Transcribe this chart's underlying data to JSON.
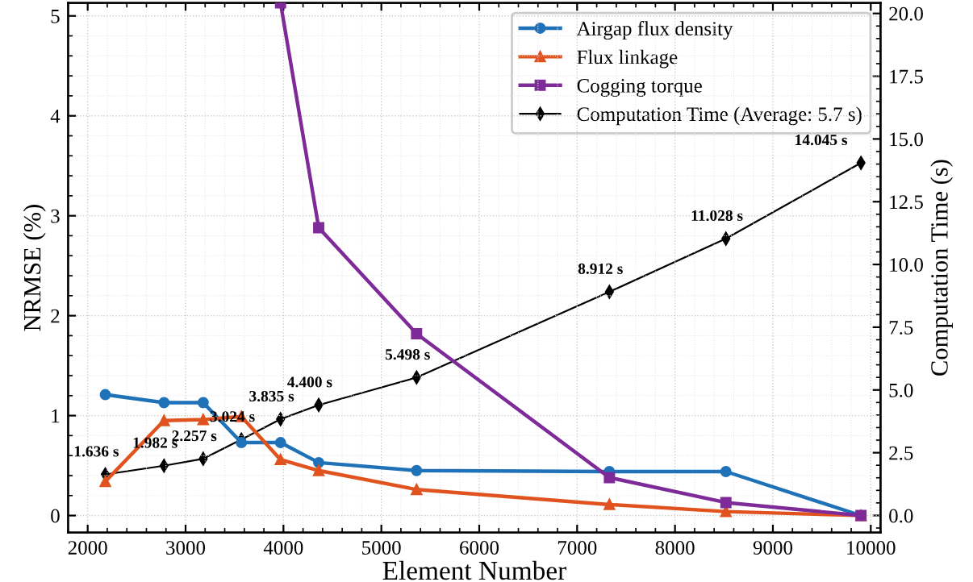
{
  "chart_data": {
    "type": "line",
    "xlabel": "Element Number",
    "ylabel": "NRMSE (%)",
    "y2label": "Computation Time (s)",
    "x": [
      2180,
      2780,
      3180,
      3570,
      3970,
      4360,
      5360,
      7330,
      8520,
      9900
    ],
    "series": [
      {
        "name": "Airgap flux density",
        "color": "#1f72b8",
        "marker": "circle",
        "values": [
          1.21,
          1.13,
          1.13,
          0.73,
          0.73,
          0.53,
          0.45,
          0.44,
          0.44,
          0
        ]
      },
      {
        "name": "Flux linkage",
        "color": "#e0531f",
        "marker": "triangle",
        "values": [
          0.34,
          0.95,
          0.96,
          0.99,
          0.56,
          0.45,
          0.26,
          0.11,
          0.04,
          0
        ]
      },
      {
        "name": "Cogging torque",
        "color": "#7e2a98",
        "marker": "square",
        "values": [
          null,
          null,
          null,
          null,
          5.13,
          2.88,
          1.82,
          0.38,
          0.13,
          0
        ]
      },
      {
        "name": "Computation Time (Average: 5.7 s)",
        "color": "#000000",
        "marker": "diamond",
        "axis": "y2",
        "values": [
          1.636,
          1.982,
          2.257,
          3.024,
          3.835,
          4.4,
          5.498,
          8.912,
          11.028,
          14.045
        ],
        "value_labels": [
          "1.636 s",
          "1.982 s",
          "2.257 s",
          "3.024 s",
          "3.835 s",
          "4.400 s",
          "5.498 s",
          "8.912 s",
          "11.028 s",
          "14.045 s"
        ]
      }
    ],
    "xlim": [
      1800,
      10100
    ],
    "xticks": [
      2000,
      3000,
      4000,
      5000,
      6000,
      7000,
      8000,
      9000,
      10000
    ],
    "ylim": [
      -0.17,
      5.13
    ],
    "yticks": [
      0,
      1,
      2,
      3,
      4,
      5
    ],
    "y2lim": [
      -0.68,
      20.42
    ],
    "y2ticks": [
      {
        "value": 0,
        "label": "0.0"
      },
      {
        "value": 2.5,
        "label": "2.5"
      },
      {
        "value": 5,
        "label": "5.0"
      },
      {
        "value": 7.5,
        "label": "7.5"
      },
      {
        "value": 10,
        "label": "10.0"
      },
      {
        "value": 12.5,
        "label": "12.5"
      },
      {
        "value": 15,
        "label": "15.0"
      },
      {
        "value": 17.5,
        "label": "17.5"
      },
      {
        "value": 20,
        "label": "20.0"
      }
    ],
    "grid": true,
    "legend": "top right",
    "line_style": "solid"
  }
}
